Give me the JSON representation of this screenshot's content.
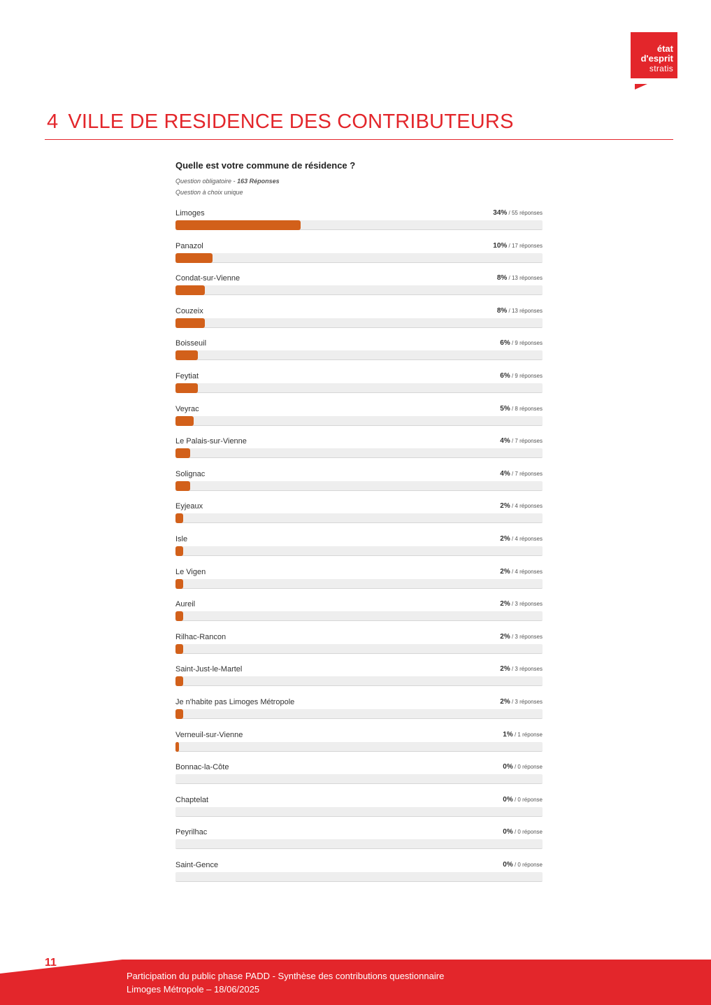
{
  "logo": {
    "line1": "état",
    "line2": "d'esprit",
    "line3": "stratis"
  },
  "section": {
    "number": "4",
    "title": "VILLE DE RESIDENCE DES CONTRIBUTEURS"
  },
  "question": {
    "title": "Quelle est votre commune de résidence ?",
    "meta_prefix": "Question obligatoire - ",
    "meta_count": "163 Réponses",
    "meta_type": "Question à choix unique"
  },
  "chart_data": {
    "type": "bar",
    "categories": [
      "Limoges",
      "Panazol",
      "Condat-sur-Vienne",
      "Couzeix",
      "Boisseuil",
      "Feytiat",
      "Veyrac",
      "Le Palais-sur-Vienne",
      "Solignac",
      "Eyjeaux",
      "Isle",
      "Le Vigen",
      "Aureil",
      "Rilhac-Rancon",
      "Saint-Just-le-Martel",
      "Je n'habite pas Limoges Métropole",
      "Verneuil-sur-Vienne",
      "Bonnac-la-Côte",
      "Chaptelat",
      "Peyrilhac",
      "Saint-Gence"
    ],
    "values": [
      34,
      10,
      8,
      8,
      6,
      6,
      5,
      4,
      4,
      2,
      2,
      2,
      2,
      2,
      2,
      2,
      1,
      0,
      0,
      0,
      0
    ],
    "percent_labels": [
      "34%",
      "10%",
      "8%",
      "8%",
      "6%",
      "6%",
      "5%",
      "4%",
      "4%",
      "2%",
      "2%",
      "2%",
      "2%",
      "2%",
      "2%",
      "2%",
      "1%",
      "0%",
      "0%",
      "0%",
      "0%"
    ],
    "response_labels": [
      "/ 55 réponses",
      "/ 17 réponses",
      "/ 13 réponses",
      "/ 13 réponses",
      "/ 9 réponses",
      "/ 9 réponses",
      "/ 8 réponses",
      "/ 7 réponses",
      "/ 7 réponses",
      "/ 4 réponses",
      "/ 4 réponses",
      "/ 4 réponses",
      "/ 3 réponses",
      "/ 3 réponses",
      "/ 3 réponses",
      "/ 3 réponses",
      "/ 1 réponse",
      "/ 0 réponse",
      "/ 0 réponse",
      "/ 0 réponse",
      "/ 0 réponse"
    ],
    "xlim": [
      0,
      100
    ],
    "bar_color": "#d2601a",
    "track_color": "#eeeeee"
  },
  "footer": {
    "page_number": "11",
    "line1": "Participation du public phase PADD - Synthèse des contributions questionnaire",
    "line2": "Limoges Métropole – 18/06/2025"
  }
}
